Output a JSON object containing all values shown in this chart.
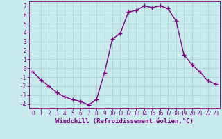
{
  "x": [
    0,
    1,
    2,
    3,
    4,
    5,
    6,
    7,
    8,
    9,
    10,
    11,
    12,
    13,
    14,
    15,
    16,
    17,
    18,
    19,
    20,
    21,
    22,
    23
  ],
  "y": [
    -0.4,
    -1.3,
    -2.0,
    -2.7,
    -3.2,
    -3.5,
    -3.7,
    -4.1,
    -3.5,
    -0.5,
    3.3,
    3.9,
    6.3,
    6.5,
    7.0,
    6.8,
    7.0,
    6.7,
    5.3,
    1.5,
    0.4,
    -0.4,
    -1.4,
    -1.8
  ],
  "line_color": "#800080",
  "marker": "+",
  "marker_color": "#800080",
  "bg_color": "#c8eaea",
  "grid_color": "#aad4d4",
  "xlabel": "Windchill (Refroidissement éolien,°C)",
  "xlabel_color": "#800080",
  "tick_color": "#800080",
  "ylim": [
    -4.5,
    7.5
  ],
  "xlim": [
    -0.5,
    23.5
  ],
  "yticks": [
    -4,
    -3,
    -2,
    -1,
    0,
    1,
    2,
    3,
    4,
    5,
    6,
    7
  ],
  "xticks": [
    0,
    1,
    2,
    3,
    4,
    5,
    6,
    7,
    8,
    9,
    10,
    11,
    12,
    13,
    14,
    15,
    16,
    17,
    18,
    19,
    20,
    21,
    22,
    23
  ],
  "line_width": 1.0,
  "marker_size": 4,
  "tick_fontsize": 5.5,
  "xlabel_fontsize": 6.5
}
